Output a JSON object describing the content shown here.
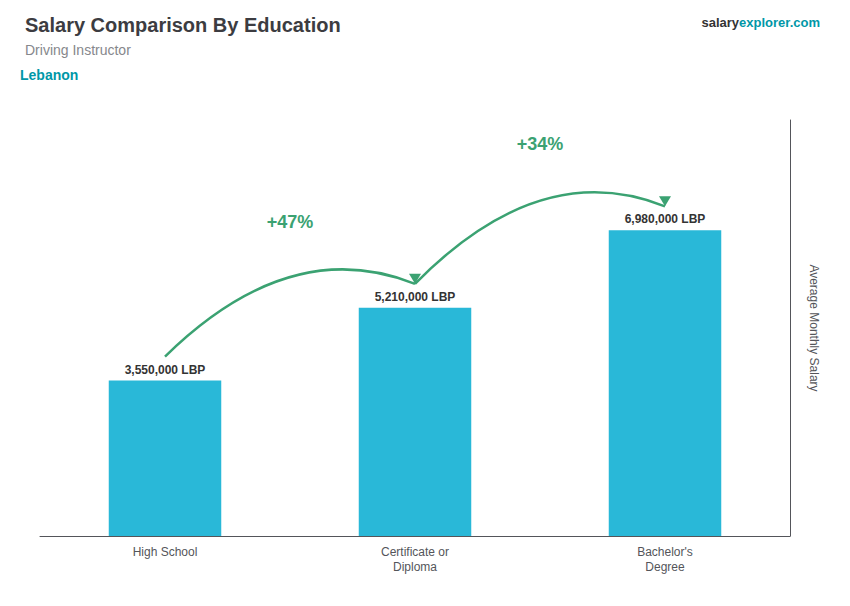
{
  "chart_data": {
    "type": "bar",
    "title": "Salary Comparison By Education",
    "subtitle": "Driving Instructor",
    "country": "Lebanon",
    "site": [
      "salary",
      "explorer.com"
    ],
    "categories": [
      "High School",
      "Certificate or\nDiploma",
      "Bachelor's\nDegree"
    ],
    "values": [
      3550000,
      5210000,
      6980000
    ],
    "value_labels": [
      "3,550,000 LBP",
      "5,210,000 LBP",
      "6,980,000 LBP"
    ],
    "data_labels": true,
    "annotations": [
      "+47%",
      "+34%"
    ],
    "color": "#29b8d8",
    "ylabel": "Average Monthly Salary",
    "ylim": [
      0,
      9500000
    ],
    "tick_labels": false,
    "grid": false
  }
}
